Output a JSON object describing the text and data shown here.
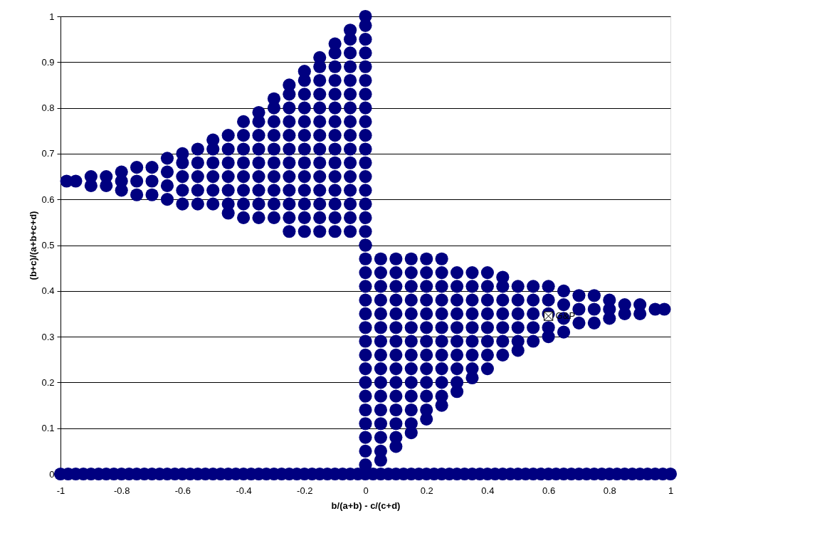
{
  "chart_data": {
    "type": "scatter",
    "xlabel": "b/(a+b) - c/(c+d)",
    "ylabel": "(b+c)/(a+b+c+d)",
    "xlim": [
      -1,
      1
    ],
    "xticks": [
      -1,
      -0.8,
      -0.6,
      -0.4,
      -0.2,
      0,
      0.2,
      0.4,
      0.6,
      0.8,
      1
    ],
    "ylim": [
      0,
      1
    ],
    "yticks": [
      0,
      0.1,
      0.2,
      0.3,
      0.4,
      0.5,
      0.6,
      0.7,
      0.8,
      0.9,
      1
    ],
    "grid": "y",
    "marker": "circle",
    "series": [
      {
        "color": "#000080",
        "x": [
          0,
          0,
          0,
          0,
          0,
          0,
          0,
          0,
          0,
          0,
          0,
          0,
          0,
          0,
          0,
          0,
          0,
          0,
          -0.05,
          -0.05,
          -0.05,
          -0.05,
          -0.05,
          -0.05,
          -0.05,
          -0.05,
          -0.05,
          -0.05,
          -0.05,
          -0.05,
          -0.05,
          -0.05,
          -0.05,
          -0.05,
          -0.1,
          -0.1,
          -0.1,
          -0.1,
          -0.1,
          -0.1,
          -0.1,
          -0.1,
          -0.1,
          -0.1,
          -0.1,
          -0.1,
          -0.1,
          -0.1,
          -0.1,
          -0.15,
          -0.15,
          -0.15,
          -0.15,
          -0.15,
          -0.15,
          -0.15,
          -0.15,
          -0.15,
          -0.15,
          -0.15,
          -0.15,
          -0.15,
          -0.15,
          -0.2,
          -0.2,
          -0.2,
          -0.2,
          -0.2,
          -0.2,
          -0.2,
          -0.2,
          -0.2,
          -0.2,
          -0.2,
          -0.2,
          -0.2,
          -0.25,
          -0.25,
          -0.25,
          -0.25,
          -0.25,
          -0.25,
          -0.25,
          -0.25,
          -0.25,
          -0.25,
          -0.25,
          -0.25,
          -0.3,
          -0.3,
          -0.3,
          -0.3,
          -0.3,
          -0.3,
          -0.3,
          -0.3,
          -0.3,
          -0.3,
          -0.35,
          -0.35,
          -0.35,
          -0.35,
          -0.35,
          -0.35,
          -0.35,
          -0.35,
          -0.35,
          -0.4,
          -0.4,
          -0.4,
          -0.4,
          -0.4,
          -0.4,
          -0.4,
          -0.4,
          -0.45,
          -0.45,
          -0.45,
          -0.45,
          -0.45,
          -0.45,
          -0.45,
          -0.5,
          -0.5,
          -0.5,
          -0.5,
          -0.5,
          -0.5,
          -0.55,
          -0.55,
          -0.55,
          -0.55,
          -0.55,
          -0.6,
          -0.6,
          -0.6,
          -0.6,
          -0.6,
          -0.65,
          -0.65,
          -0.65,
          -0.65,
          -0.7,
          -0.7,
          -0.7,
          -0.75,
          -0.75,
          -0.75,
          -0.8,
          -0.8,
          -0.8,
          -0.85,
          -0.85,
          -0.9,
          -0.9,
          -0.95,
          -0.98
        ],
        "values": [
          0.5,
          0.53,
          0.56,
          0.59,
          0.62,
          0.65,
          0.68,
          0.71,
          0.74,
          0.77,
          0.8,
          0.83,
          0.86,
          0.89,
          0.92,
          0.95,
          0.98,
          1,
          0.53,
          0.56,
          0.59,
          0.62,
          0.65,
          0.68,
          0.71,
          0.74,
          0.77,
          0.8,
          0.83,
          0.86,
          0.89,
          0.92,
          0.95,
          0.97,
          0.53,
          0.56,
          0.59,
          0.62,
          0.65,
          0.68,
          0.71,
          0.74,
          0.77,
          0.8,
          0.83,
          0.86,
          0.89,
          0.92,
          0.94,
          0.53,
          0.56,
          0.59,
          0.62,
          0.65,
          0.68,
          0.71,
          0.74,
          0.77,
          0.8,
          0.83,
          0.86,
          0.89,
          0.91,
          0.53,
          0.56,
          0.59,
          0.62,
          0.65,
          0.68,
          0.71,
          0.74,
          0.77,
          0.8,
          0.83,
          0.86,
          0.88,
          0.53,
          0.56,
          0.59,
          0.62,
          0.65,
          0.68,
          0.71,
          0.74,
          0.77,
          0.8,
          0.83,
          0.85,
          0.56,
          0.59,
          0.62,
          0.65,
          0.68,
          0.71,
          0.74,
          0.77,
          0.8,
          0.82,
          0.56,
          0.59,
          0.62,
          0.65,
          0.68,
          0.71,
          0.74,
          0.77,
          0.79,
          0.56,
          0.59,
          0.62,
          0.65,
          0.68,
          0.71,
          0.74,
          0.77,
          0.57,
          0.59,
          0.62,
          0.65,
          0.68,
          0.71,
          0.74,
          0.59,
          0.62,
          0.65,
          0.68,
          0.71,
          0.73,
          0.59,
          0.62,
          0.65,
          0.68,
          0.71,
          0.59,
          0.62,
          0.65,
          0.68,
          0.7,
          0.6,
          0.63,
          0.66,
          0.69,
          0.61,
          0.64,
          0.67,
          0.61,
          0.64,
          0.67,
          0.62,
          0.64,
          0.66,
          0.63,
          0.65,
          0.63,
          0.65,
          0.64,
          0.64
        ]
      },
      {
        "color": "#000080",
        "x": [
          0,
          0,
          0,
          0,
          0,
          0,
          0,
          0,
          0,
          0,
          0,
          0,
          0,
          0,
          0,
          0,
          0,
          0.05,
          0.05,
          0.05,
          0.05,
          0.05,
          0.05,
          0.05,
          0.05,
          0.05,
          0.05,
          0.05,
          0.05,
          0.05,
          0.05,
          0.05,
          0.05,
          0.1,
          0.1,
          0.1,
          0.1,
          0.1,
          0.1,
          0.1,
          0.1,
          0.1,
          0.1,
          0.1,
          0.1,
          0.1,
          0.1,
          0.1,
          0.15,
          0.15,
          0.15,
          0.15,
          0.15,
          0.15,
          0.15,
          0.15,
          0.15,
          0.15,
          0.15,
          0.15,
          0.15,
          0.15,
          0.2,
          0.2,
          0.2,
          0.2,
          0.2,
          0.2,
          0.2,
          0.2,
          0.2,
          0.2,
          0.2,
          0.2,
          0.2,
          0.25,
          0.25,
          0.25,
          0.25,
          0.25,
          0.25,
          0.25,
          0.25,
          0.25,
          0.25,
          0.25,
          0.25,
          0.3,
          0.3,
          0.3,
          0.3,
          0.3,
          0.3,
          0.3,
          0.3,
          0.3,
          0.3,
          0.35,
          0.35,
          0.35,
          0.35,
          0.35,
          0.35,
          0.35,
          0.35,
          0.35,
          0.4,
          0.4,
          0.4,
          0.4,
          0.4,
          0.4,
          0.4,
          0.4,
          0.45,
          0.45,
          0.45,
          0.45,
          0.45,
          0.45,
          0.45,
          0.5,
          0.5,
          0.5,
          0.5,
          0.5,
          0.5,
          0.55,
          0.55,
          0.55,
          0.55,
          0.55,
          0.6,
          0.6,
          0.6,
          0.6,
          0.6,
          0.65,
          0.65,
          0.65,
          0.65,
          0.7,
          0.7,
          0.7,
          0.75,
          0.75,
          0.75,
          0.8,
          0.8,
          0.8,
          0.85,
          0.85,
          0.9,
          0.9,
          0.95,
          0.98
        ],
        "values": [
          0.5,
          0.47,
          0.44,
          0.41,
          0.38,
          0.35,
          0.32,
          0.29,
          0.26,
          0.23,
          0.2,
          0.17,
          0.14,
          0.11,
          0.08,
          0.05,
          0.02,
          0.47,
          0.44,
          0.41,
          0.38,
          0.35,
          0.32,
          0.29,
          0.26,
          0.23,
          0.2,
          0.17,
          0.14,
          0.11,
          0.08,
          0.05,
          0.03,
          0.47,
          0.44,
          0.41,
          0.38,
          0.35,
          0.32,
          0.29,
          0.26,
          0.23,
          0.2,
          0.17,
          0.14,
          0.11,
          0.08,
          0.06,
          0.47,
          0.44,
          0.41,
          0.38,
          0.35,
          0.32,
          0.29,
          0.26,
          0.23,
          0.2,
          0.17,
          0.14,
          0.11,
          0.09,
          0.47,
          0.44,
          0.41,
          0.38,
          0.35,
          0.32,
          0.29,
          0.26,
          0.23,
          0.2,
          0.17,
          0.14,
          0.12,
          0.47,
          0.44,
          0.41,
          0.38,
          0.35,
          0.32,
          0.29,
          0.26,
          0.23,
          0.2,
          0.17,
          0.15,
          0.44,
          0.41,
          0.38,
          0.35,
          0.32,
          0.29,
          0.26,
          0.23,
          0.2,
          0.18,
          0.44,
          0.41,
          0.38,
          0.35,
          0.32,
          0.29,
          0.26,
          0.23,
          0.21,
          0.44,
          0.41,
          0.38,
          0.35,
          0.32,
          0.29,
          0.26,
          0.23,
          0.43,
          0.41,
          0.38,
          0.35,
          0.32,
          0.29,
          0.26,
          0.41,
          0.38,
          0.35,
          0.32,
          0.29,
          0.27,
          0.41,
          0.38,
          0.35,
          0.32,
          0.29,
          0.41,
          0.38,
          0.35,
          0.32,
          0.3,
          0.4,
          0.37,
          0.34,
          0.31,
          0.39,
          0.36,
          0.33,
          0.39,
          0.36,
          0.33,
          0.38,
          0.36,
          0.34,
          0.37,
          0.35,
          0.37,
          0.35,
          0.36,
          0.36
        ]
      },
      {
        "color": "#000080",
        "x": [
          -1,
          -0.975,
          -0.95,
          -0.925,
          -0.9,
          -0.875,
          -0.85,
          -0.825,
          -0.8,
          -0.775,
          -0.75,
          -0.725,
          -0.7,
          -0.675,
          -0.65,
          -0.625,
          -0.6,
          -0.575,
          -0.55,
          -0.525,
          -0.5,
          -0.475,
          -0.45,
          -0.425,
          -0.4,
          -0.375,
          -0.35,
          -0.325,
          -0.3,
          -0.275,
          -0.25,
          -0.225,
          -0.2,
          -0.175,
          -0.15,
          -0.125,
          -0.1,
          -0.075,
          -0.05,
          -0.025,
          0,
          0.025,
          0.05,
          0.075,
          0.1,
          0.125,
          0.15,
          0.175,
          0.2,
          0.225,
          0.25,
          0.275,
          0.3,
          0.325,
          0.35,
          0.375,
          0.4,
          0.425,
          0.45,
          0.475,
          0.5,
          0.525,
          0.55,
          0.575,
          0.6,
          0.625,
          0.65,
          0.675,
          0.7,
          0.725,
          0.75,
          0.775,
          0.8,
          0.825,
          0.85,
          0.875,
          0.9,
          0.925,
          0.95,
          0.975,
          1
        ],
        "values": [
          0,
          0,
          0,
          0,
          0,
          0,
          0,
          0,
          0,
          0,
          0,
          0,
          0,
          0,
          0,
          0,
          0,
          0,
          0,
          0,
          0,
          0,
          0,
          0,
          0,
          0,
          0,
          0,
          0,
          0,
          0,
          0,
          0,
          0,
          0,
          0,
          0,
          0,
          0,
          0,
          0,
          0,
          0,
          0,
          0,
          0,
          0,
          0,
          0,
          0,
          0,
          0,
          0,
          0,
          0,
          0,
          0,
          0,
          0,
          0,
          0,
          0,
          0,
          0,
          0,
          0,
          0,
          0,
          0,
          0,
          0,
          0,
          0,
          0,
          0,
          0,
          0,
          0,
          0,
          0,
          0
        ]
      },
      {
        "color": "#000000",
        "marker": "square",
        "x": [
          0.6
        ],
        "values": [
          0.345
        ]
      }
    ],
    "annotations": [
      {
        "text": "G&P",
        "x": 0.6,
        "y": 0.345
      }
    ]
  }
}
